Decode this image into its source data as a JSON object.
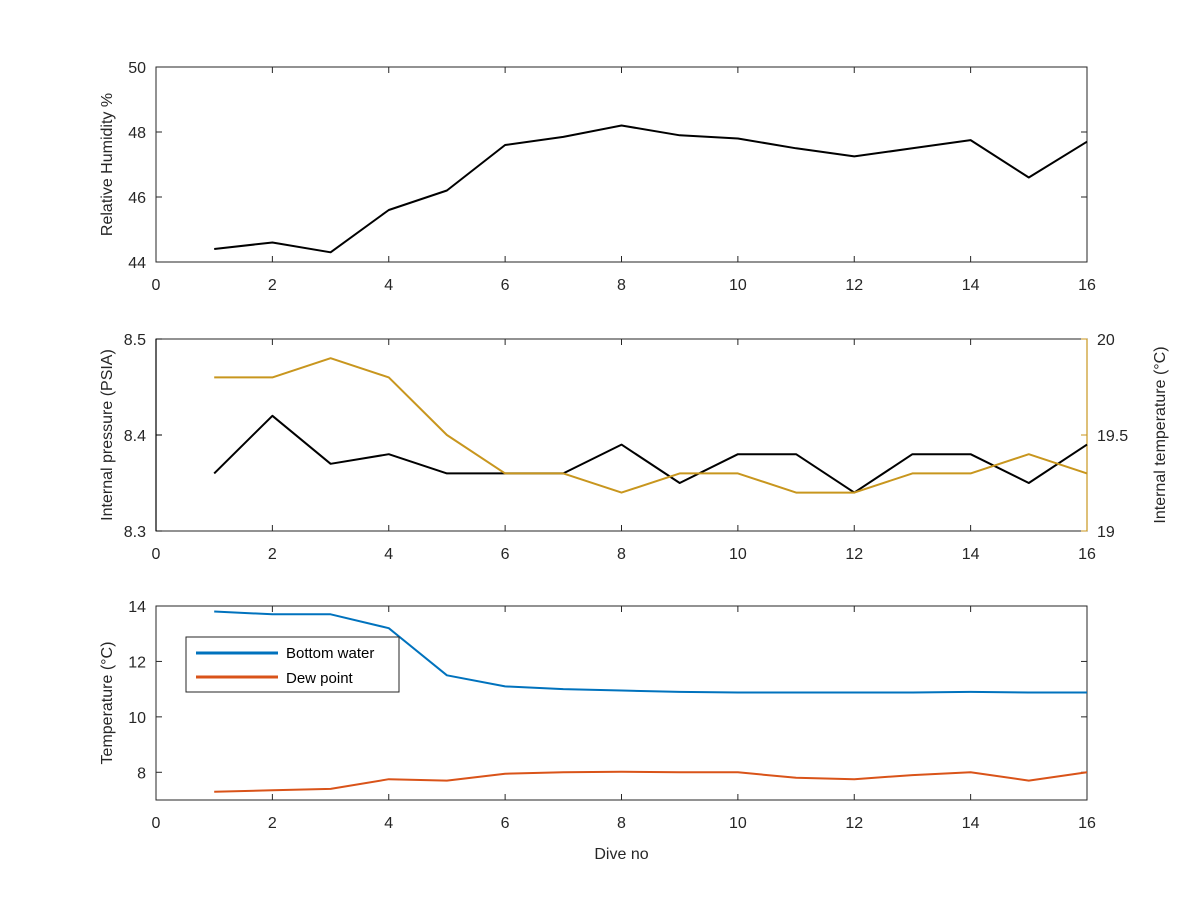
{
  "colors": {
    "black": "#000000",
    "axis": "#262626",
    "gold": "#c8961e",
    "blue": "#0072bd",
    "orange": "#d95319"
  },
  "chart_data": [
    {
      "type": "line",
      "xlabel": "",
      "ylabel": "Relative Humidity %",
      "xlim": [
        0,
        16
      ],
      "ylim": [
        44,
        50
      ],
      "x_ticks": [
        "0",
        "2",
        "4",
        "6",
        "8",
        "10",
        "12",
        "14",
        "16"
      ],
      "y_ticks": [
        "44",
        "46",
        "48",
        "50"
      ],
      "series": [
        {
          "x": [
            1,
            2,
            3,
            4,
            5,
            6,
            7,
            8,
            9,
            10,
            11,
            12,
            13,
            14,
            15,
            16
          ],
          "values": [
            44.4,
            44.6,
            44.3,
            45.6,
            46.2,
            47.6,
            47.85,
            48.2,
            47.9,
            47.8,
            47.5,
            47.25,
            47.5,
            47.75,
            46.6,
            47.7
          ]
        }
      ],
      "grid": false
    },
    {
      "type": "line",
      "xlabel": "",
      "ylabel": "Internal pressure (PSIA)",
      "ylabel_right": "Internal temperature (°C)",
      "xlim": [
        0,
        16
      ],
      "ylim": [
        8.3,
        8.5
      ],
      "ylim_right": [
        19,
        20
      ],
      "x_ticks": [
        "0",
        "2",
        "4",
        "6",
        "8",
        "10",
        "12",
        "14",
        "16"
      ],
      "y_ticks": [
        "8.3",
        "8.4",
        "8.5"
      ],
      "y_ticks_right": [
        "19",
        "19.5",
        "20"
      ],
      "series": [
        {
          "axis": "left",
          "x": [
            1,
            2,
            3,
            4,
            5,
            6,
            7,
            8,
            9,
            10,
            11,
            12,
            13,
            14,
            15,
            16
          ],
          "values": [
            8.36,
            8.42,
            8.37,
            8.38,
            8.36,
            8.36,
            8.36,
            8.39,
            8.35,
            8.38,
            8.38,
            8.34,
            8.38,
            8.38,
            8.35,
            8.39
          ]
        },
        {
          "axis": "right",
          "x": [
            1,
            2,
            3,
            4,
            5,
            6,
            7,
            8,
            9,
            10,
            11,
            12,
            13,
            14,
            15,
            16
          ],
          "values": [
            19.8,
            19.8,
            19.9,
            19.8,
            19.5,
            19.3,
            19.3,
            19.2,
            19.3,
            19.3,
            19.2,
            19.2,
            19.3,
            19.3,
            19.4,
            19.3
          ]
        }
      ],
      "grid": false
    },
    {
      "type": "line",
      "xlabel": "Dive no",
      "ylabel": "Temperature (°C)",
      "xlim": [
        0,
        16
      ],
      "ylim": [
        7,
        14
      ],
      "x_ticks": [
        "0",
        "2",
        "4",
        "6",
        "8",
        "10",
        "12",
        "14",
        "16"
      ],
      "y_ticks": [
        "8",
        "10",
        "12",
        "14"
      ],
      "legend": {
        "placement": "top-left"
      },
      "series": [
        {
          "name": "Bottom water",
          "x": [
            1,
            2,
            3,
            4,
            5,
            6,
            7,
            8,
            9,
            10,
            11,
            12,
            13,
            14,
            15,
            16
          ],
          "values": [
            13.8,
            13.7,
            13.7,
            13.2,
            11.5,
            11.1,
            11.0,
            10.95,
            10.9,
            10.88,
            10.88,
            10.88,
            10.88,
            10.9,
            10.88,
            10.88
          ]
        },
        {
          "name": "Dew point",
          "x": [
            1,
            2,
            3,
            4,
            5,
            6,
            7,
            8,
            9,
            10,
            11,
            12,
            13,
            14,
            15,
            16
          ],
          "values": [
            7.3,
            7.35,
            7.4,
            7.75,
            7.7,
            7.95,
            8.0,
            8.02,
            8.0,
            8.0,
            7.8,
            7.75,
            7.9,
            8.0,
            7.7,
            8.0
          ]
        }
      ],
      "grid": false
    }
  ]
}
